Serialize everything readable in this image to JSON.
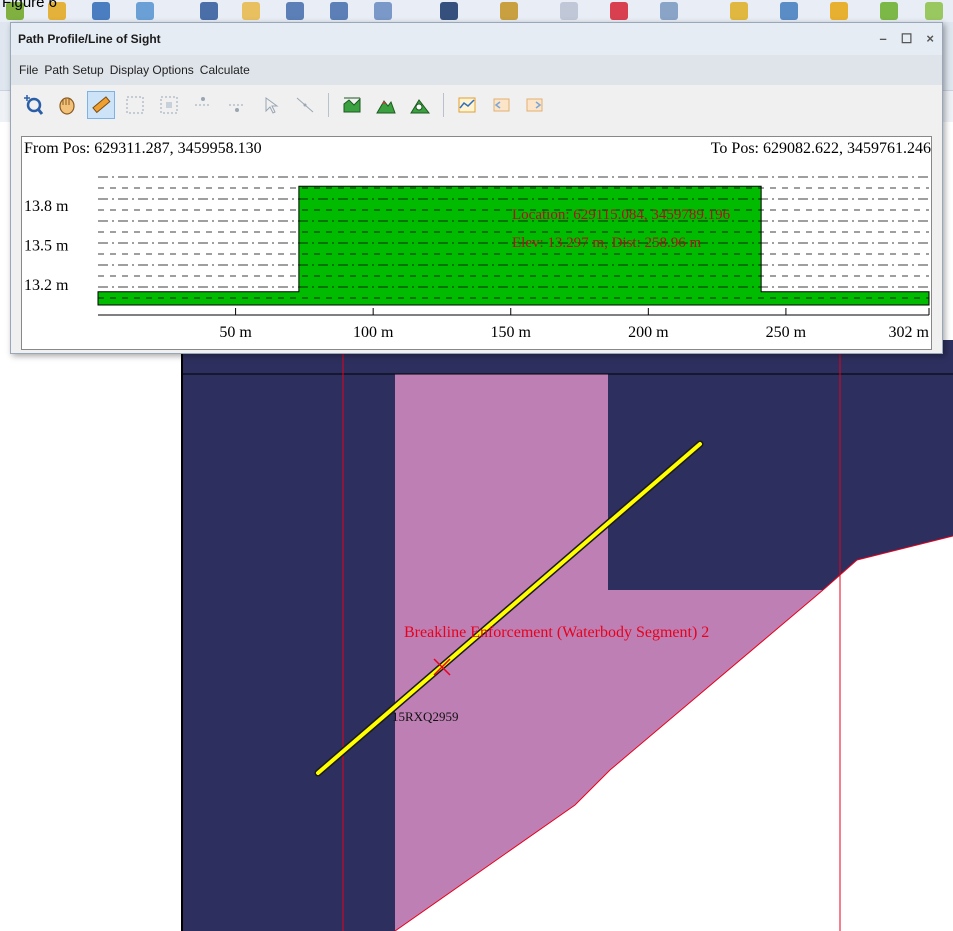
{
  "figure_label": "Figure 6",
  "window": {
    "title": "Path Profile/Line of Sight",
    "controls": {
      "minimize": "–",
      "maximize": "☐",
      "close": "×"
    },
    "menu": [
      "File",
      "Path Setup",
      "Display Options",
      "Calculate"
    ],
    "toolbar_icons": [
      "zoom-in-icon",
      "pan-hand-icon",
      "ruler-icon",
      "grid-dots-icon",
      "grid-select-icon",
      "add-point-icon",
      "remove-point-icon",
      "select-arrow-icon",
      "select-line-icon",
      "terrain-profile-icon",
      "mountain-icon",
      "line-of-sight-icon",
      "profile-line-icon",
      "profile-back-icon",
      "profile-forward-icon"
    ]
  },
  "profile": {
    "from_pos": "From Pos: 629311.287, 3459958.130",
    "to_pos": "To Pos: 629082.622, 3459761.246",
    "cursor_location": "Location: 629115.084, 3459789.196",
    "cursor_elev": "Elev: 13.297 m, Dist: 258.96 m",
    "fill_color": "#00bb00"
  },
  "chart_data": {
    "type": "area",
    "title": "",
    "xlabel": "",
    "ylabel": "",
    "x_ticks": [
      "50 m",
      "100 m",
      "150 m",
      "200 m",
      "250 m",
      "302 m"
    ],
    "y_ticks": [
      "13.2 m",
      "13.5 m",
      "13.8 m"
    ],
    "xlim": [
      0,
      302
    ],
    "ylim": [
      13.05,
      14.05
    ],
    "x": [
      0,
      73,
      73,
      241,
      241,
      302
    ],
    "y": [
      13.15,
      13.15,
      13.95,
      13.95,
      13.15,
      13.15
    ],
    "grid": true
  },
  "map": {
    "label_feature": "Breakline Enforcement (Waterbody Segment) 2",
    "label_tile": "15RXQ2959",
    "colors": {
      "water": "#2d2f5e",
      "breakline": "#be80b4",
      "line": "#ffff00",
      "boundary": "#e8001c"
    }
  }
}
